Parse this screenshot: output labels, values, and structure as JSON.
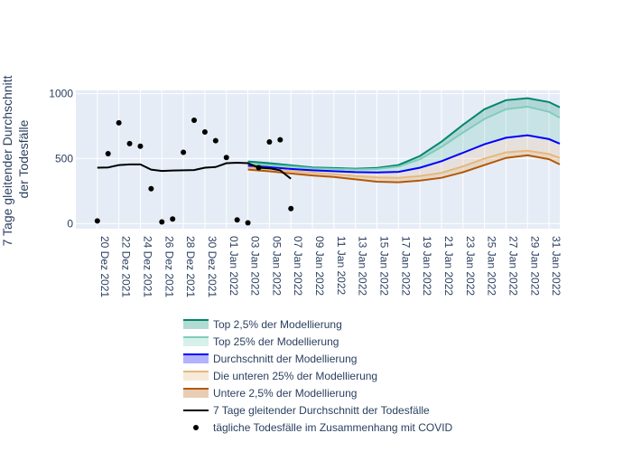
{
  "chart_data": {
    "type": "line",
    "ylabel_lines": [
      "7 Tage gleitender Durchschnitt",
      "der Todesfälle"
    ],
    "ylim": [
      -40,
      1025
    ],
    "y_ticks": [
      0,
      500,
      1000
    ],
    "x_range": [
      "2021-12-18",
      "2022-02-01"
    ],
    "x_ticks": [
      {
        "date": "2021-12-20",
        "label": "20 Dez 2021"
      },
      {
        "date": "2021-12-22",
        "label": "22 Dez 2021"
      },
      {
        "date": "2021-12-24",
        "label": "24 Dez 2021"
      },
      {
        "date": "2021-12-26",
        "label": "26 Dez 2021"
      },
      {
        "date": "2021-12-28",
        "label": "28 Dez 2021"
      },
      {
        "date": "2021-12-30",
        "label": "30 Dez 2021"
      },
      {
        "date": "2022-01-01",
        "label": "01 Jan 2022"
      },
      {
        "date": "2022-01-03",
        "label": "03 Jan 2022"
      },
      {
        "date": "2022-01-05",
        "label": "05 Jan 2022"
      },
      {
        "date": "2022-01-07",
        "label": "07 Jan 2022"
      },
      {
        "date": "2022-01-09",
        "label": "09 Jan 2022"
      },
      {
        "date": "2022-01-11",
        "label": "11 Jan 2022"
      },
      {
        "date": "2022-01-13",
        "label": "13 Jan 2022"
      },
      {
        "date": "2022-01-15",
        "label": "15 Jan 2022"
      },
      {
        "date": "2022-01-17",
        "label": "17 Jan 2022"
      },
      {
        "date": "2022-01-19",
        "label": "19 Jan 2022"
      },
      {
        "date": "2022-01-21",
        "label": "21 Jan 2022"
      },
      {
        "date": "2022-01-23",
        "label": "23 Jan 2022"
      },
      {
        "date": "2022-01-25",
        "label": "25 Jan 2022"
      },
      {
        "date": "2022-01-27",
        "label": "27 Jan 2022"
      },
      {
        "date": "2022-01-29",
        "label": "29 Jan 2022"
      },
      {
        "date": "2022-01-31",
        "label": "31 Jan 2022"
      }
    ],
    "colors": {
      "top_2_5": "#00876c",
      "top_25": "#7fcdbb",
      "mean": "#0000ff",
      "bottom_25": "#e6b87f",
      "bottom_2_5": "#b35806",
      "rolling": "#000000",
      "daily": "#000000",
      "plot_bg": "#e5ecf6",
      "grid": "#ffffff",
      "text": "#2a3f5f"
    },
    "model_x": [
      "2022-01-03",
      "2022-01-05",
      "2022-01-07",
      "2022-01-09",
      "2022-01-11",
      "2022-01-13",
      "2022-01-15",
      "2022-01-17",
      "2022-01-19",
      "2022-01-21",
      "2022-01-23",
      "2022-01-25",
      "2022-01-27",
      "2022-01-29",
      "2022-01-31",
      "2022-02-01"
    ],
    "series": [
      {
        "key": "top_2_5",
        "name": "Top 2,5% der Modellierung",
        "values": [
          478,
          465,
          448,
          432,
          427,
          422,
          428,
          450,
          520,
          630,
          760,
          880,
          950,
          965,
          935,
          895
        ]
      },
      {
        "key": "top_25",
        "name": "Top 25% der Modellierung",
        "values": [
          458,
          450,
          438,
          425,
          420,
          416,
          420,
          438,
          495,
          590,
          700,
          805,
          880,
          900,
          860,
          815
        ]
      },
      {
        "key": "mean",
        "name": "Durchschnitt der Modellierung",
        "values": [
          445,
          433,
          420,
          410,
          403,
          396,
          394,
          398,
          430,
          480,
          545,
          610,
          660,
          680,
          650,
          615
        ]
      },
      {
        "key": "bottom_25",
        "name": "Die unteren 25% der Modellierung",
        "values": [
          430,
          420,
          405,
          392,
          380,
          366,
          355,
          352,
          365,
          390,
          440,
          500,
          548,
          560,
          535,
          505
        ]
      },
      {
        "key": "bottom_2_5",
        "name": "Untere 2,5% der Modellierung",
        "values": [
          415,
          402,
          385,
          370,
          358,
          340,
          322,
          318,
          330,
          352,
          395,
          450,
          505,
          525,
          495,
          455
        ]
      }
    ],
    "rolling": {
      "name": "7 Tage gleitender Durchschnitt der Todesfälle",
      "x": [
        "2021-12-20",
        "2021-12-21",
        "2021-12-22",
        "2021-12-23",
        "2021-12-24",
        "2021-12-25",
        "2021-12-26",
        "2021-12-27",
        "2021-12-28",
        "2021-12-29",
        "2021-12-30",
        "2021-12-31",
        "2022-01-01",
        "2022-01-02",
        "2022-01-03",
        "2022-01-04",
        "2022-01-05",
        "2022-01-06",
        "2022-01-07"
      ],
      "y": [
        430,
        432,
        450,
        455,
        455,
        415,
        405,
        408,
        410,
        412,
        430,
        435,
        465,
        468,
        465,
        430,
        425,
        410,
        345
      ]
    },
    "daily": {
      "name": "tägliche Todesfälle im Zusammenhang mit COVID",
      "x": [
        "2021-12-20",
        "2021-12-21",
        "2021-12-22",
        "2021-12-23",
        "2021-12-24",
        "2021-12-25",
        "2021-12-26",
        "2021-12-27",
        "2021-12-28",
        "2021-12-29",
        "2021-12-30",
        "2021-12-31",
        "2022-01-01",
        "2022-01-02",
        "2022-01-03",
        "2022-01-04",
        "2022-01-05",
        "2022-01-06",
        "2022-01-07"
      ],
      "y": [
        20,
        538,
        775,
        615,
        595,
        268,
        12,
        35,
        548,
        795,
        705,
        638,
        508,
        28,
        5,
        430,
        628,
        645,
        115
      ]
    },
    "legend_order": [
      "top_2_5",
      "top_25",
      "mean",
      "bottom_25",
      "bottom_2_5",
      "rolling",
      "daily"
    ]
  }
}
